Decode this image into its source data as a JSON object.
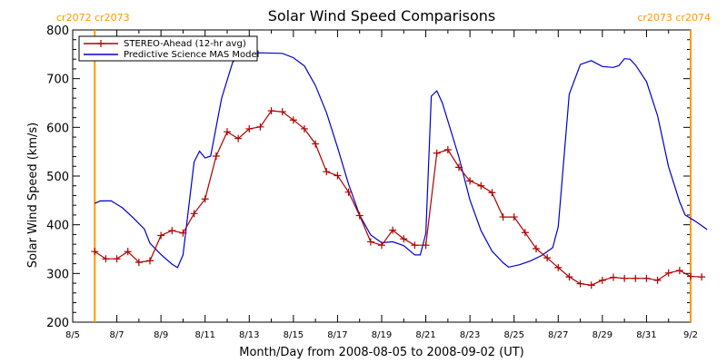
{
  "chart_data": {
    "type": "line",
    "title": "Solar Wind Speed Comparisons",
    "xlabel": "Month/Day from 2008-08-05 to 2008-09-02 (UT)",
    "ylabel": "Solar Wind Speed (km/s)",
    "ylim": [
      200,
      800
    ],
    "xlim": [
      "2008-08-05",
      "2008-09-02"
    ],
    "y_ticks": [
      200,
      300,
      400,
      500,
      600,
      700,
      800
    ],
    "x_ticks": [
      {
        "date": "2008-08-05",
        "label": "8/5"
      },
      {
        "date": "2008-08-07",
        "label": "8/7"
      },
      {
        "date": "2008-08-09",
        "label": "8/9"
      },
      {
        "date": "2008-08-11",
        "label": "8/11"
      },
      {
        "date": "2008-08-13",
        "label": "8/13"
      },
      {
        "date": "2008-08-15",
        "label": "8/15"
      },
      {
        "date": "2008-08-17",
        "label": "8/17"
      },
      {
        "date": "2008-08-19",
        "label": "8/19"
      },
      {
        "date": "2008-08-21",
        "label": "8/21"
      },
      {
        "date": "2008-08-23",
        "label": "8/23"
      },
      {
        "date": "2008-08-25",
        "label": "8/25"
      },
      {
        "date": "2008-08-27",
        "label": "8/27"
      },
      {
        "date": "2008-08-29",
        "label": "8/29"
      },
      {
        "date": "2008-08-31",
        "label": "8/31"
      },
      {
        "date": "2008-09-02",
        "label": "9/2"
      }
    ],
    "grid": false,
    "legend_position": "top-left",
    "carrington_markers": [
      {
        "date": "2008-08-06 00:00",
        "label": "cr2072 cr2073",
        "label_align": "left"
      },
      {
        "date": "2008-09-02 00:00",
        "label": "cr2073 cr2074",
        "label_align": "right"
      }
    ],
    "series": [
      {
        "name": "STEREO-Ahead (12-hr avg)",
        "color": "#b00000",
        "marker": "plus",
        "points": [
          [
            "2008-08-06 00:00",
            345
          ],
          [
            "2008-08-06 12:00",
            330
          ],
          [
            "2008-08-07 00:00",
            330
          ],
          [
            "2008-08-07 12:00",
            345
          ],
          [
            "2008-08-08 00:00",
            323
          ],
          [
            "2008-08-08 12:00",
            326
          ],
          [
            "2008-08-09 00:00",
            378
          ],
          [
            "2008-08-09 12:00",
            388
          ],
          [
            "2008-08-10 00:00",
            383
          ],
          [
            "2008-08-10 12:00",
            423
          ],
          [
            "2008-08-11 00:00",
            453
          ],
          [
            "2008-08-11 12:00",
            541
          ],
          [
            "2008-08-12 00:00",
            591
          ],
          [
            "2008-08-12 12:00",
            577
          ],
          [
            "2008-08-13 00:00",
            597
          ],
          [
            "2008-08-13 12:00",
            601
          ],
          [
            "2008-08-14 00:00",
            634
          ],
          [
            "2008-08-14 12:00",
            632
          ],
          [
            "2008-08-15 00:00",
            615
          ],
          [
            "2008-08-15 12:00",
            597
          ],
          [
            "2008-08-16 00:00",
            566
          ],
          [
            "2008-08-16 12:00",
            509
          ],
          [
            "2008-08-17 00:00",
            501
          ],
          [
            "2008-08-17 12:00",
            467
          ],
          [
            "2008-08-18 00:00",
            419
          ],
          [
            "2008-08-18 12:00",
            365
          ],
          [
            "2008-08-19 00:00",
            358
          ],
          [
            "2008-08-19 12:00",
            389
          ],
          [
            "2008-08-20 00:00",
            371
          ],
          [
            "2008-08-20 12:00",
            358
          ],
          [
            "2008-08-21 00:00",
            358
          ],
          [
            "2008-08-21 12:00",
            547
          ],
          [
            "2008-08-22 00:00",
            554
          ],
          [
            "2008-08-22 12:00",
            518
          ],
          [
            "2008-08-23 00:00",
            490
          ],
          [
            "2008-08-23 12:00",
            480
          ],
          [
            "2008-08-24 00:00",
            466
          ],
          [
            "2008-08-24 12:00",
            416
          ],
          [
            "2008-08-25 00:00",
            416
          ],
          [
            "2008-08-25 12:00",
            384
          ],
          [
            "2008-08-26 00:00",
            351
          ],
          [
            "2008-08-26 12:00",
            332
          ],
          [
            "2008-08-27 00:00",
            312
          ],
          [
            "2008-08-27 12:00",
            293
          ],
          [
            "2008-08-28 00:00",
            279
          ],
          [
            "2008-08-28 12:00",
            276
          ],
          [
            "2008-08-29 00:00",
            286
          ],
          [
            "2008-08-29 12:00",
            292
          ],
          [
            "2008-08-30 00:00",
            290
          ],
          [
            "2008-08-30 12:00",
            290
          ],
          [
            "2008-08-31 00:00",
            290
          ],
          [
            "2008-08-31 12:00",
            286
          ],
          [
            "2008-09-01 00:00",
            301
          ],
          [
            "2008-09-01 12:00",
            306
          ],
          [
            "2008-09-02 00:00",
            294
          ],
          [
            "2008-09-02 12:00",
            293
          ]
        ]
      },
      {
        "name": "Predictive Science MAS Model",
        "color": "#0000cc",
        "marker": "none",
        "points": [
          [
            "2008-08-06 00:00",
            444
          ],
          [
            "2008-08-06 06:00",
            449
          ],
          [
            "2008-08-06 18:00",
            449
          ],
          [
            "2008-08-07 06:00",
            435
          ],
          [
            "2008-08-07 18:00",
            414
          ],
          [
            "2008-08-08 06:00",
            391
          ],
          [
            "2008-08-08 12:00",
            362
          ],
          [
            "2008-08-09 00:00",
            339
          ],
          [
            "2008-08-09 12:00",
            319
          ],
          [
            "2008-08-09 18:00",
            312
          ],
          [
            "2008-08-10 00:00",
            338
          ],
          [
            "2008-08-10 12:00",
            529
          ],
          [
            "2008-08-10 18:00",
            551
          ],
          [
            "2008-08-11 00:00",
            537
          ],
          [
            "2008-08-11 06:00",
            541
          ],
          [
            "2008-08-11 18:00",
            660
          ],
          [
            "2008-08-12 06:00",
            734
          ],
          [
            "2008-08-12 18:00",
            752
          ],
          [
            "2008-08-13 12:00",
            753
          ],
          [
            "2008-08-14 12:00",
            752
          ],
          [
            "2008-08-15 00:00",
            743
          ],
          [
            "2008-08-15 12:00",
            726
          ],
          [
            "2008-08-16 00:00",
            686
          ],
          [
            "2008-08-16 12:00",
            630
          ],
          [
            "2008-08-17 00:00",
            559
          ],
          [
            "2008-08-17 12:00",
            483
          ],
          [
            "2008-08-18 00:00",
            420
          ],
          [
            "2008-08-18 12:00",
            379
          ],
          [
            "2008-08-19 00:00",
            363
          ],
          [
            "2008-08-19 12:00",
            365
          ],
          [
            "2008-08-20 00:00",
            357
          ],
          [
            "2008-08-20 12:00",
            338
          ],
          [
            "2008-08-20 18:00",
            338
          ],
          [
            "2008-08-21 00:00",
            382
          ],
          [
            "2008-08-21 06:00",
            664
          ],
          [
            "2008-08-21 12:00",
            675
          ],
          [
            "2008-08-21 18:00",
            650
          ],
          [
            "2008-08-22 12:00",
            539
          ],
          [
            "2008-08-23 00:00",
            451
          ],
          [
            "2008-08-23 12:00",
            388
          ],
          [
            "2008-08-24 00:00",
            346
          ],
          [
            "2008-08-24 12:00",
            322
          ],
          [
            "2008-08-24 18:00",
            313
          ],
          [
            "2008-08-25 06:00",
            318
          ],
          [
            "2008-08-25 18:00",
            326
          ],
          [
            "2008-08-26 06:00",
            337
          ],
          [
            "2008-08-26 18:00",
            353
          ],
          [
            "2008-08-27 00:00",
            396
          ],
          [
            "2008-08-27 12:00",
            668
          ],
          [
            "2008-08-28 00:00",
            729
          ],
          [
            "2008-08-28 12:00",
            737
          ],
          [
            "2008-08-29 00:00",
            725
          ],
          [
            "2008-08-29 12:00",
            723
          ],
          [
            "2008-08-29 18:00",
            727
          ],
          [
            "2008-08-30 00:00",
            741
          ],
          [
            "2008-08-30 06:00",
            740
          ],
          [
            "2008-08-30 12:00",
            728
          ],
          [
            "2008-08-31 00:00",
            694
          ],
          [
            "2008-08-31 12:00",
            624
          ],
          [
            "2008-09-01 00:00",
            519
          ],
          [
            "2008-09-01 12:00",
            447
          ],
          [
            "2008-09-01 18:00",
            420
          ],
          [
            "2008-09-02 06:00",
            406
          ],
          [
            "2008-09-02 18:00",
            390
          ]
        ]
      }
    ]
  }
}
